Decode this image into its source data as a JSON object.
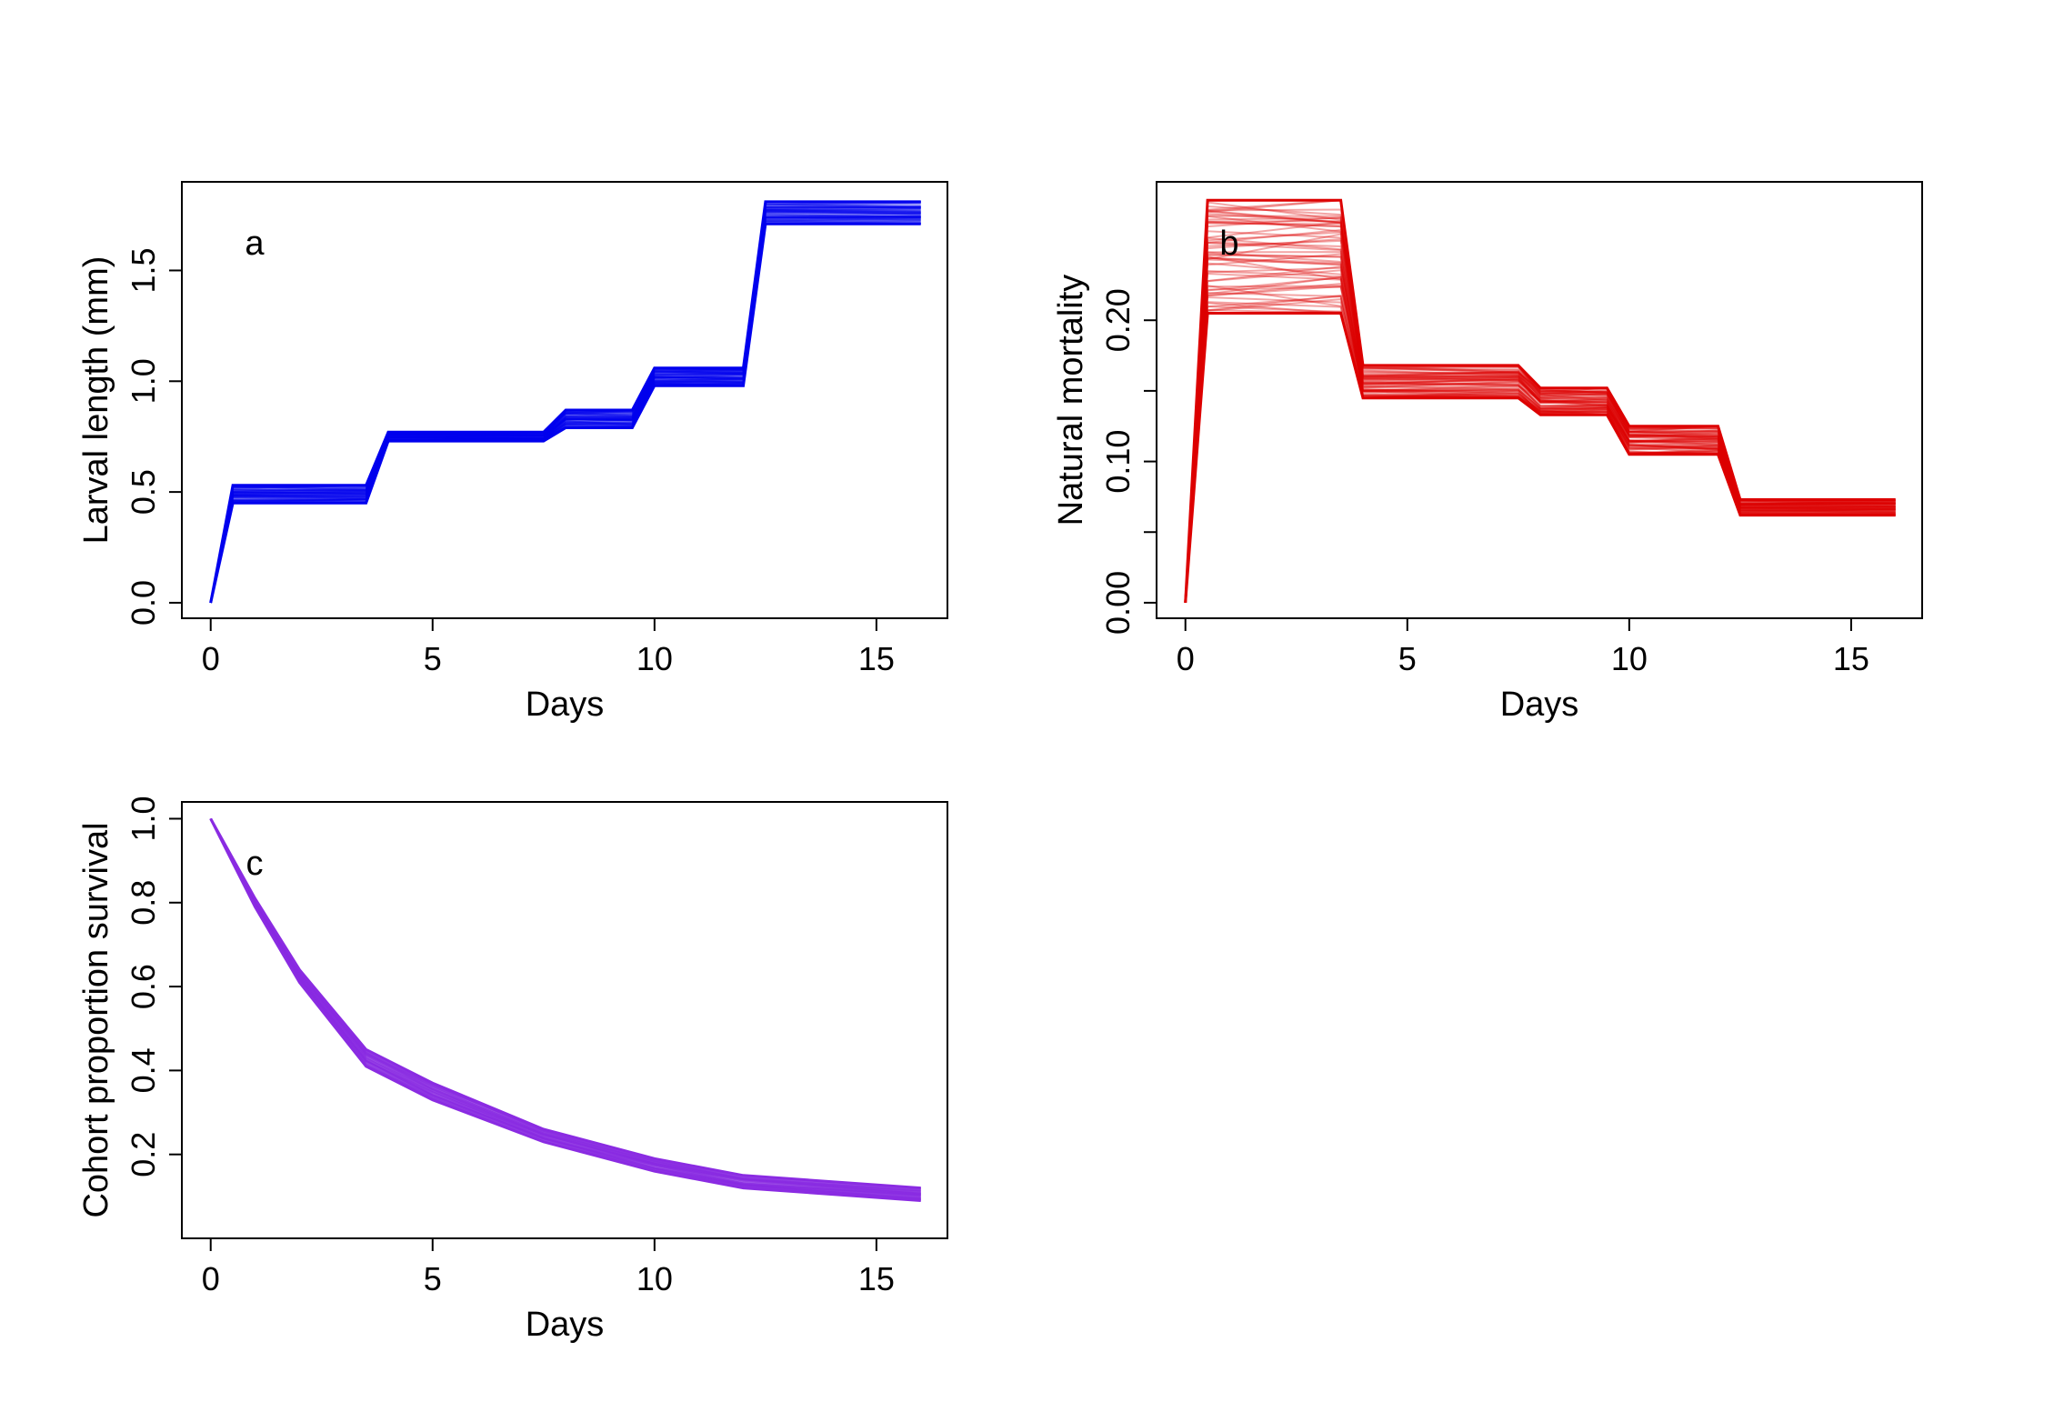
{
  "chart_data": [
    {
      "type": "line",
      "panel_label": "a",
      "xlabel": "Days",
      "ylabel": "Larval length (mm)",
      "xlim": [
        -0.65,
        16.6
      ],
      "ylim": [
        -0.07,
        1.9
      ],
      "xticks": [
        "0",
        "5",
        "10",
        "15"
      ],
      "xtick_values": [
        0,
        5,
        10,
        15
      ],
      "yticks": [
        "0.0",
        "0.5",
        "1.0",
        "1.5"
      ],
      "ytick_values": [
        0,
        0.5,
        1.0,
        1.5
      ],
      "color": "#0000ee",
      "series": [
        {
          "x": [
            0,
            0.5,
            3.5,
            4,
            7.5,
            8,
            9.5,
            10,
            12,
            12.5,
            16
          ],
          "y": [
            0,
            0.45,
            0.45,
            0.73,
            0.73,
            0.79,
            0.79,
            0.98,
            0.98,
            1.71,
            1.71
          ]
        },
        {
          "x": [
            0,
            0.5,
            3.5,
            4,
            7.5,
            8,
            9.5,
            10,
            12,
            12.5,
            16
          ],
          "y": [
            0,
            0.53,
            0.53,
            0.77,
            0.77,
            0.87,
            0.87,
            1.06,
            1.06,
            1.81,
            1.81
          ]
        }
      ]
    },
    {
      "type": "line",
      "panel_label": "b",
      "xlabel": "Days",
      "ylabel": "Natural mortality",
      "xlim": [
        -0.65,
        16.6
      ],
      "ylim": [
        -0.011,
        0.298
      ],
      "xticks": [
        "0",
        "5",
        "10",
        "15"
      ],
      "xtick_values": [
        0,
        5,
        10,
        15
      ],
      "yticks": [
        "0.00",
        "0.10",
        "0.20"
      ],
      "ytick_values": [
        0,
        0.1,
        0.2
      ],
      "ytick_minor_values": [
        0.05,
        0.15
      ],
      "color": "#dd0000",
      "series": [
        {
          "x": [
            0,
            0.5,
            3.5,
            4,
            7.5,
            8,
            9.5,
            10,
            12,
            12.5,
            16
          ],
          "y": [
            0,
            0.205,
            0.205,
            0.145,
            0.145,
            0.133,
            0.133,
            0.105,
            0.105,
            0.062,
            0.062
          ]
        },
        {
          "x": [
            0,
            0.5,
            3.5,
            4,
            7.5,
            8,
            9.5,
            10,
            12,
            12.5,
            16
          ],
          "y": [
            0,
            0.285,
            0.285,
            0.168,
            0.168,
            0.152,
            0.152,
            0.125,
            0.125,
            0.073,
            0.073
          ]
        }
      ]
    },
    {
      "type": "line",
      "panel_label": "c",
      "xlabel": "Days",
      "ylabel": "Cohort proportion survival",
      "xlim": [
        -0.65,
        16.6
      ],
      "ylim": [
        0.0,
        1.04
      ],
      "xticks": [
        "0",
        "5",
        "10",
        "15"
      ],
      "xtick_values": [
        0,
        5,
        10,
        15
      ],
      "yticks": [
        "0.2",
        "0.4",
        "0.6",
        "0.8",
        "1.0"
      ],
      "ytick_values": [
        0.2,
        0.4,
        0.6,
        0.8,
        1.0
      ],
      "color": "#8a2be2",
      "series": [
        {
          "x": [
            0,
            1,
            2,
            3.5,
            5,
            7.5,
            10,
            12,
            16
          ],
          "y": [
            1.0,
            0.79,
            0.61,
            0.41,
            0.33,
            0.23,
            0.16,
            0.12,
            0.09
          ]
        },
        {
          "x": [
            0,
            1,
            2,
            3.5,
            5,
            7.5,
            10,
            12,
            16
          ],
          "y": [
            1.0,
            0.81,
            0.64,
            0.45,
            0.37,
            0.26,
            0.19,
            0.15,
            0.12
          ]
        }
      ]
    }
  ]
}
